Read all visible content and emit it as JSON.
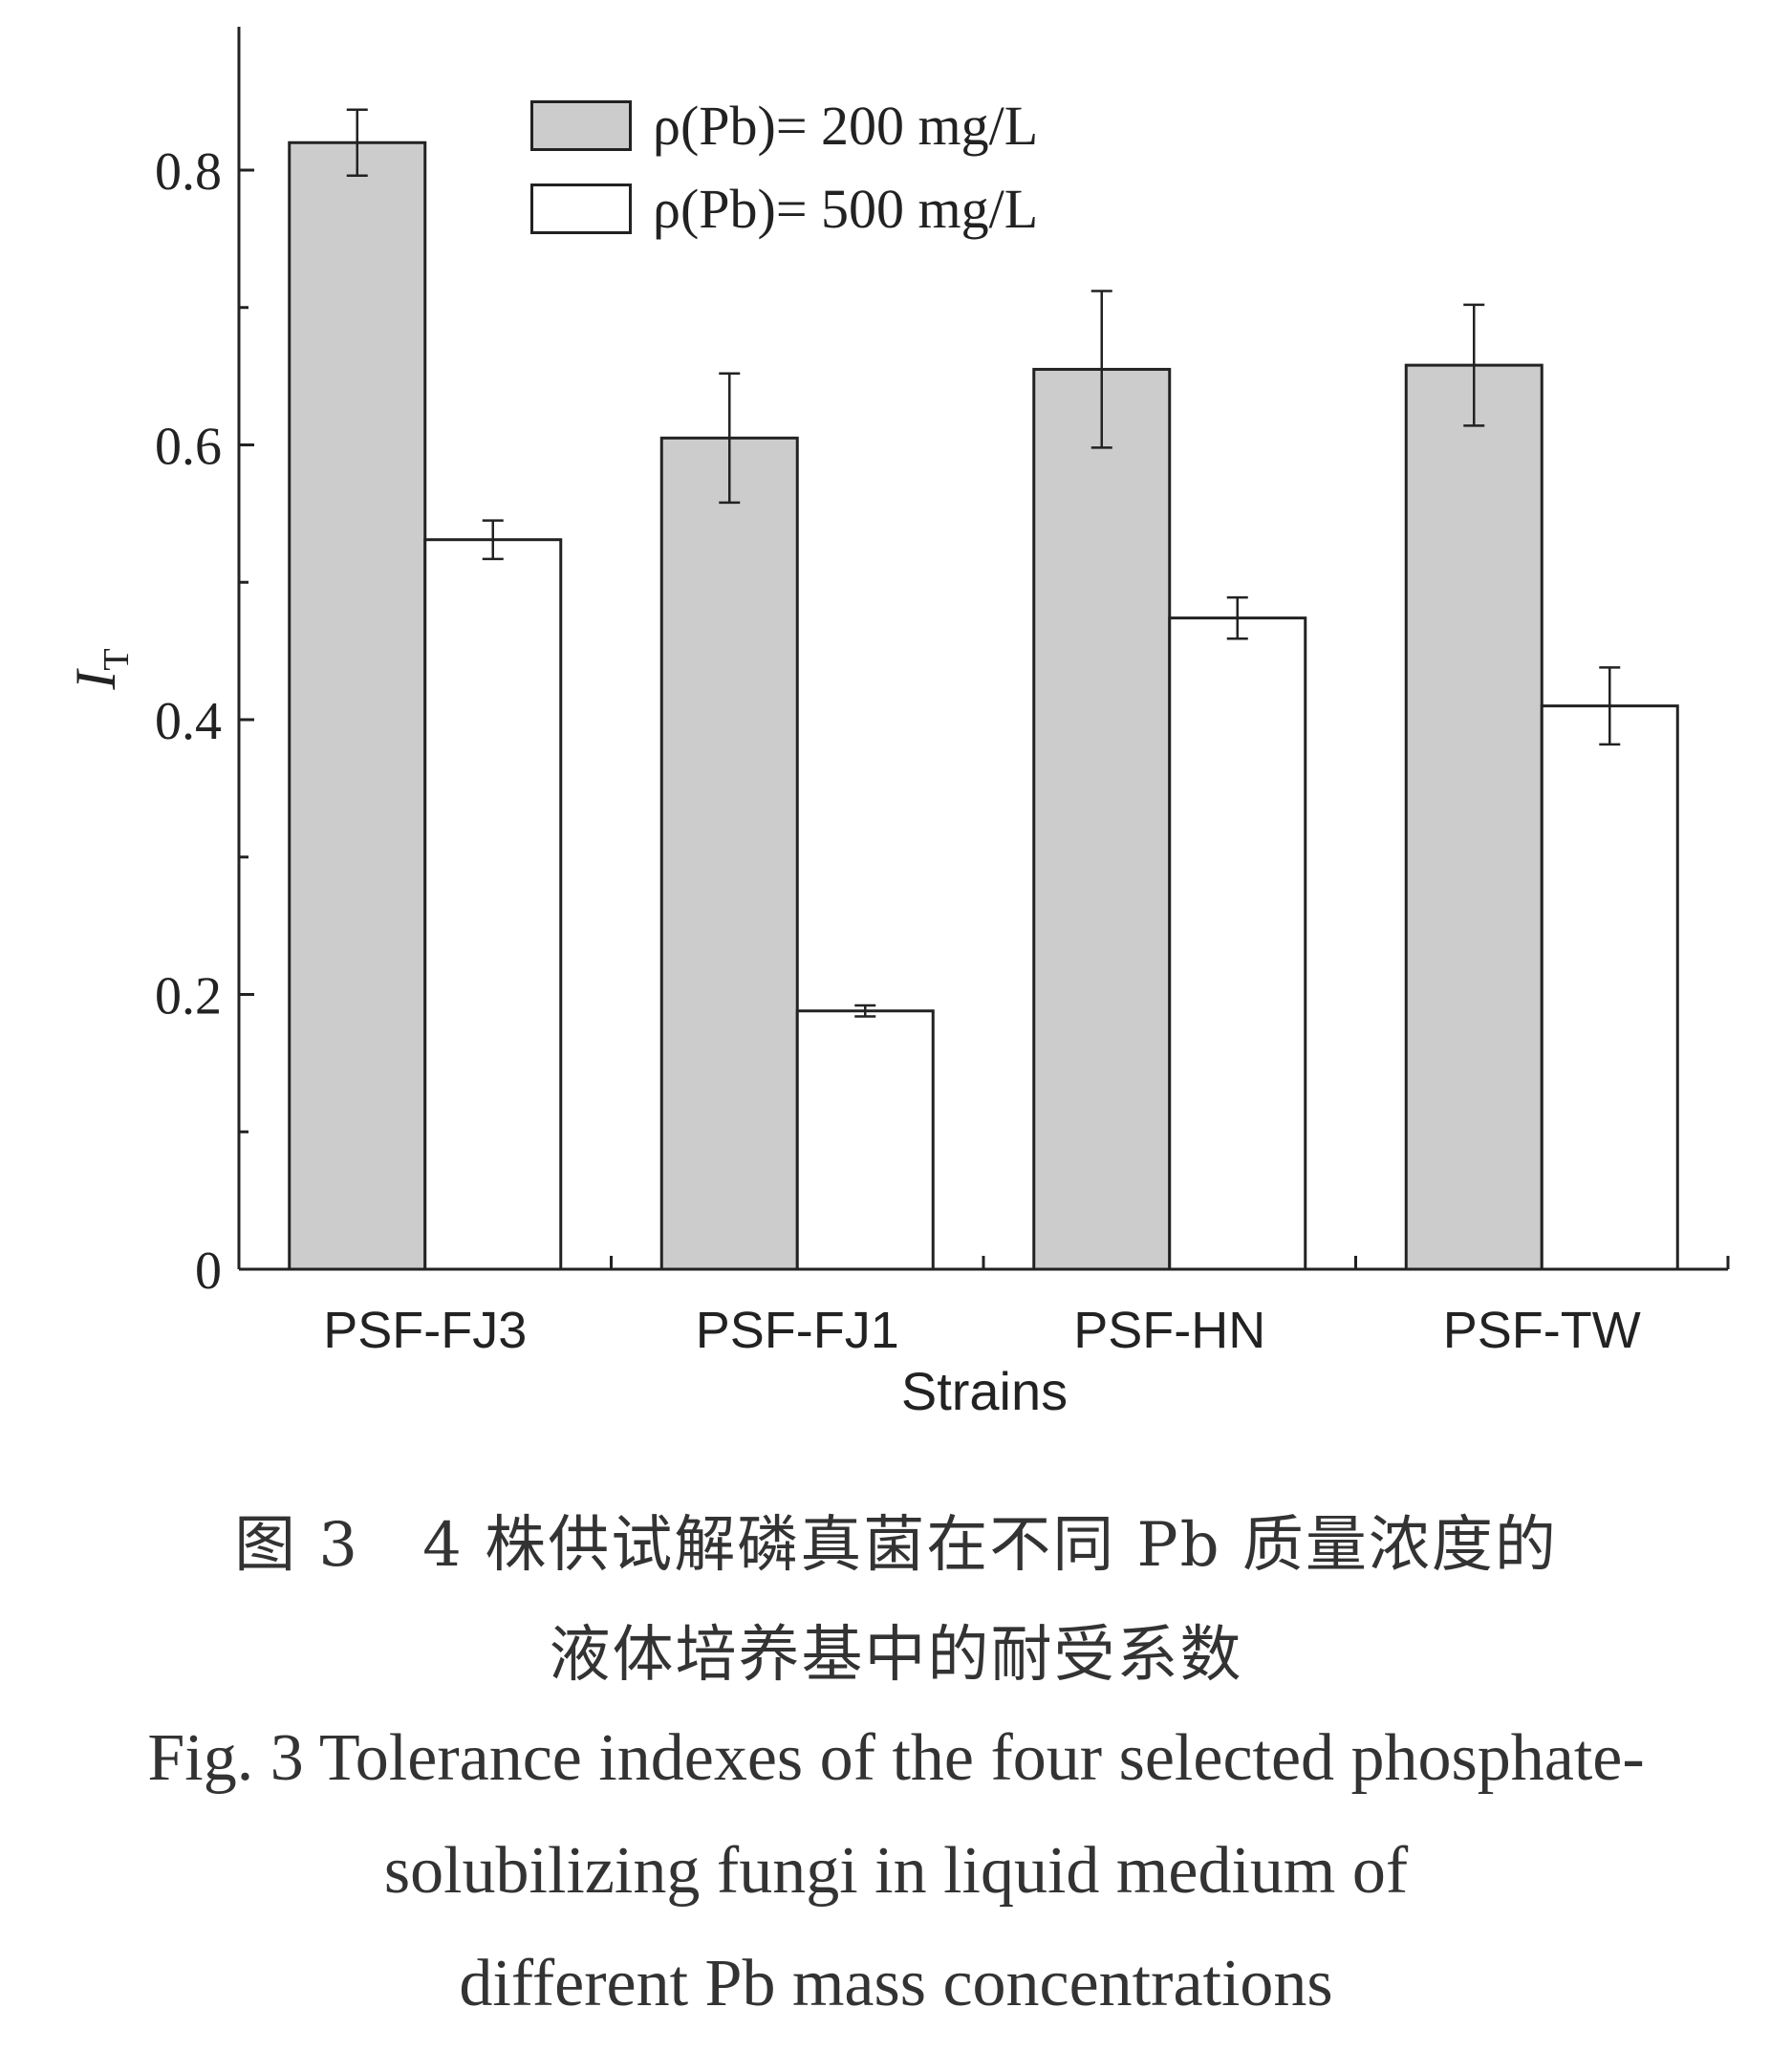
{
  "chart_data": {
    "type": "bar",
    "categories": [
      "PSF-FJ3",
      "PSF-FJ1",
      "PSF-HN",
      "PSF-TW"
    ],
    "series": [
      {
        "name": "ρ(Pb)= 200 mg/L",
        "values": [
          0.82,
          0.605,
          0.655,
          0.658
        ],
        "errors": [
          0.024,
          0.047,
          0.057,
          0.044
        ],
        "color": "#cccccc"
      },
      {
        "name": "ρ(Pb)= 500 mg/L",
        "values": [
          0.531,
          0.188,
          0.474,
          0.41
        ],
        "errors": [
          0.014,
          0.004,
          0.015,
          0.028
        ],
        "color": "#ffffff"
      }
    ],
    "xlabel": "Strains",
    "ylabel": "I",
    "ylabel_sub": "T",
    "ylim": [
      0,
      0.9
    ],
    "yticks": [
      0,
      0.2,
      0.4,
      0.6,
      0.8
    ],
    "ytick_labels": [
      "0",
      "0.2",
      "0.4",
      "0.6",
      "0.8"
    ],
    "grid": false,
    "legend_position": "top-center"
  },
  "caption": {
    "cn_line1": "图 3　4 株供试解磷真菌在不同 Pb 质量浓度的",
    "cn_line2": "液体培养基中的耐受系数",
    "en_line1": "Fig. 3  Tolerance indexes of the four selected phosphate-",
    "en_line2": "solubilizing fungi in liquid medium of",
    "en_line3": "different Pb mass concentrations"
  }
}
